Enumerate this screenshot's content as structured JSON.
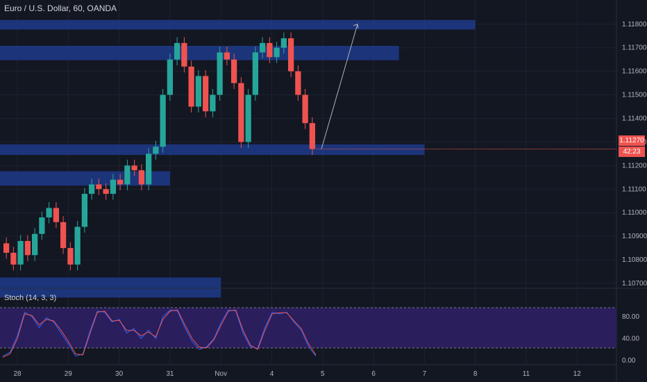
{
  "title": "Euro / U.S. Dollar, 60, OANDA",
  "stoch_title": "Stoch (14, 3, 3)",
  "price_badge": "1.11270",
  "time_badge": "42:23",
  "colors": {
    "background": "#131722",
    "grid": "#1e2230",
    "up": "#26a69a",
    "down": "#ef5350",
    "zone": "#1e3a8a",
    "band": "#2a1e5c",
    "k_line": "#2962ff",
    "d_line": "#ef5350"
  },
  "chart_data": [
    {
      "type": "candlestick",
      "title": "Euro / U.S. Dollar, 60, OANDA",
      "ylim": [
        1.1065,
        1.1187
      ],
      "y_ticks": [
        "1.11800",
        "1.11700",
        "1.11600",
        "1.11500",
        "1.11400",
        "1.11300",
        "1.11200",
        "1.11100",
        "1.11000",
        "1.10900",
        "1.10800",
        "1.10700"
      ],
      "x_ticks": [
        "28",
        "29",
        "30",
        "31",
        "Nov",
        "4",
        "5",
        "6",
        "7",
        "8",
        "11",
        "12"
      ],
      "last_price": 1.1127,
      "zones": [
        {
          "from": 1.11777,
          "to": 1.11818,
          "start": "28",
          "end": "8"
        },
        {
          "from": 1.11647,
          "to": 1.11708,
          "start": "28",
          "end": "6"
        },
        {
          "from": 1.11245,
          "to": 1.1129,
          "start": "28",
          "end": "7"
        },
        {
          "from": 1.11115,
          "to": 1.11176,
          "start": "28",
          "end": "31"
        },
        {
          "from": 1.1064,
          "to": 1.10725,
          "start": "28",
          "end": "Nov"
        }
      ],
      "arrow": {
        "from_price": 1.1127,
        "to_price": 1.118
      },
      "price_path": [
        1.1083,
        1.1078,
        1.1088,
        1.1082,
        1.1091,
        1.1098,
        1.1102,
        1.1096,
        1.1085,
        1.1078,
        1.1094,
        1.1108,
        1.1112,
        1.111,
        1.1108,
        1.1114,
        1.1112,
        1.112,
        1.1118,
        1.1112,
        1.1125,
        1.1128,
        1.115,
        1.1165,
        1.1172,
        1.1162,
        1.1145,
        1.1158,
        1.1143,
        1.115,
        1.1168,
        1.1165,
        1.1155,
        1.113,
        1.115,
        1.1168,
        1.1172,
        1.1166,
        1.117,
        1.1174,
        1.116,
        1.115,
        1.1138,
        1.1127
      ]
    },
    {
      "type": "line",
      "title": "Stoch (14, 3, 3)",
      "ylim": [
        0,
        100
      ],
      "y_ticks": [
        "80.00",
        "40.00",
        "0.00"
      ],
      "band": [
        20,
        80
      ],
      "series": [
        {
          "values": [
            8,
            15,
            45,
            88,
            80,
            60,
            78,
            70,
            50,
            30,
            8,
            12,
            55,
            90,
            88,
            70,
            75,
            50,
            58,
            40,
            55,
            40,
            80,
            92,
            90,
            60,
            35,
            20,
            25,
            40,
            70,
            92,
            90,
            50,
            25,
            22,
            60,
            88,
            85,
            88,
            70,
            55,
            25,
            8
          ]
        },
        {
          "values": [
            6,
            12,
            40,
            85,
            82,
            65,
            75,
            72,
            55,
            35,
            12,
            10,
            50,
            88,
            90,
            72,
            73,
            55,
            55,
            45,
            52,
            43,
            75,
            90,
            92,
            65,
            40,
            24,
            23,
            38,
            65,
            90,
            92,
            55,
            28,
            20,
            55,
            85,
            87,
            87,
            72,
            58,
            30,
            10
          ]
        }
      ]
    }
  ]
}
